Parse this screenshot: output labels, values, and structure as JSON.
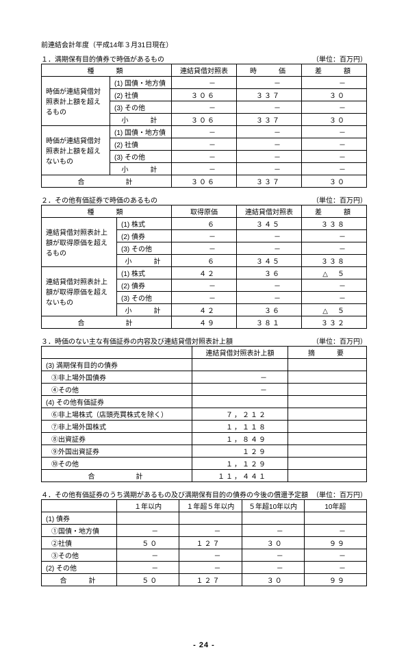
{
  "page_header": "前連結会計年度（平成14年３月31日現在）",
  "unit_label": "（単位：百万円）",
  "table1": {
    "title": "１．満期保有目的債券で時価があるもの",
    "headers": [
      "種　　類",
      "連結貸借対照表",
      "時　　価",
      "差　　額"
    ],
    "groups": [
      {
        "label": "時価が連結貸借対照表計上額を超えるもの",
        "rows": [
          {
            "type": "(1) 国債・地方債",
            "v": [
              "－",
              "－",
              "－"
            ]
          },
          {
            "type": "(2) 社債",
            "v": [
              "３０６",
              "３３７",
              "３０"
            ]
          },
          {
            "type": "(3) その他",
            "v": [
              "－",
              "－",
              "－"
            ]
          }
        ],
        "subtotal": {
          "label": "小　　計",
          "v": [
            "３０６",
            "３３７",
            "３０"
          ]
        }
      },
      {
        "label": "時価が連結貸借対照表計上額を超えないもの",
        "rows": [
          {
            "type": "(1) 国債・地方債",
            "v": [
              "－",
              "－",
              "－"
            ]
          },
          {
            "type": "(2) 社債",
            "v": [
              "－",
              "－",
              "－"
            ]
          },
          {
            "type": "(3) その他",
            "v": [
              "－",
              "－",
              "－"
            ]
          }
        ],
        "subtotal": {
          "label": "小　　計",
          "v": [
            "－",
            "－",
            "－"
          ]
        }
      }
    ],
    "total": {
      "label": "合　　　　計",
      "v": [
        "３０６",
        "３３７",
        "３０"
      ]
    }
  },
  "table2": {
    "title": "２．その他有価証券で時価のあるもの",
    "headers": [
      "種　　類",
      "取得原価",
      "連結貸借対照表",
      "差　　額"
    ],
    "groups": [
      {
        "label": "連結貸借対照表計上額が取得原価を超えるもの",
        "rows": [
          {
            "type": "(1) 株式",
            "v": [
              "６",
              "３４５",
              "３３８"
            ]
          },
          {
            "type": "(2) 債券",
            "v": [
              "－",
              "－",
              "－"
            ]
          },
          {
            "type": "(3) その他",
            "v": [
              "－",
              "－",
              "－"
            ]
          }
        ],
        "subtotal": {
          "label": "小　　計",
          "v": [
            "６",
            "３４５",
            "３３８"
          ]
        }
      },
      {
        "label": "連結貸借対照表計上額が取得原価を超えないもの",
        "rows": [
          {
            "type": "(1) 株式",
            "v": [
              "４２",
              "３６",
              "△　５"
            ]
          },
          {
            "type": "(2) 債券",
            "v": [
              "－",
              "－",
              "－"
            ]
          },
          {
            "type": "(3) その他",
            "v": [
              "－",
              "－",
              "－"
            ]
          }
        ],
        "subtotal": {
          "label": "小　　計",
          "v": [
            "４２",
            "３６",
            "△　５"
          ]
        }
      }
    ],
    "total": {
      "label": "合　　　　計",
      "v": [
        "４９",
        "３８１",
        "３３２"
      ]
    }
  },
  "table3": {
    "title": "３．時価のない主な有価証券の内容及び連結貸借対照表計上額",
    "headers": [
      "連結貸借対照表計上額",
      "摘　　要"
    ],
    "rows": [
      {
        "label": "(3) 満期保有目的の債券",
        "v": [
          "",
          ""
        ],
        "cls": "left"
      },
      {
        "label": "③非上場外国債券",
        "v": [
          "－",
          ""
        ],
        "cls": "indent1"
      },
      {
        "label": "④その他",
        "v": [
          "－",
          ""
        ],
        "cls": "indent1"
      },
      {
        "label": "(4) その他有価証券",
        "v": [
          "",
          ""
        ],
        "cls": "left"
      },
      {
        "label": "⑥非上場株式（店頭売買株式を除く）",
        "v": [
          "７，２１２",
          ""
        ],
        "cls": "indent1"
      },
      {
        "label": "⑦非上場外国株式",
        "v": [
          "１，１１８",
          ""
        ],
        "cls": "indent1"
      },
      {
        "label": "⑧出資証券",
        "v": [
          "１，８４９",
          ""
        ],
        "cls": "indent1"
      },
      {
        "label": "⑨外国出資証券",
        "v": [
          "１２９",
          ""
        ],
        "cls": "indent1"
      },
      {
        "label": "⑩その他",
        "v": [
          "１，１２９",
          ""
        ],
        "cls": "indent1"
      }
    ],
    "total": {
      "label": "合　　　　計",
      "v": [
        "１１，４４１",
        ""
      ]
    }
  },
  "table4": {
    "title": "４．その他有価証券のうち満期があるもの及び満期保有目的の債券の今後の償還予定額",
    "headers": [
      "１年以内",
      "１年超５年以内",
      "５年超10年以内",
      "10年超"
    ],
    "rows": [
      {
        "label": "(1) 債券",
        "v": [
          "",
          "",
          "",
          ""
        ],
        "cls": "left"
      },
      {
        "label": "①国債・地方債",
        "v": [
          "－",
          "－",
          "－",
          "－"
        ],
        "cls": "indent1"
      },
      {
        "label": "②社債",
        "v": [
          "５０",
          "１２７",
          "３０",
          "９９"
        ],
        "cls": "indent1"
      },
      {
        "label": "③その他",
        "v": [
          "－",
          "－",
          "－",
          "－"
        ],
        "cls": "indent1"
      },
      {
        "label": "(2) その他",
        "v": [
          "－",
          "－",
          "－",
          "－"
        ],
        "cls": "left"
      }
    ],
    "total": {
      "label": "合　　計",
      "v": [
        "５０",
        "１２７",
        "３０",
        "９９"
      ]
    }
  },
  "page_number": "- 24 -"
}
